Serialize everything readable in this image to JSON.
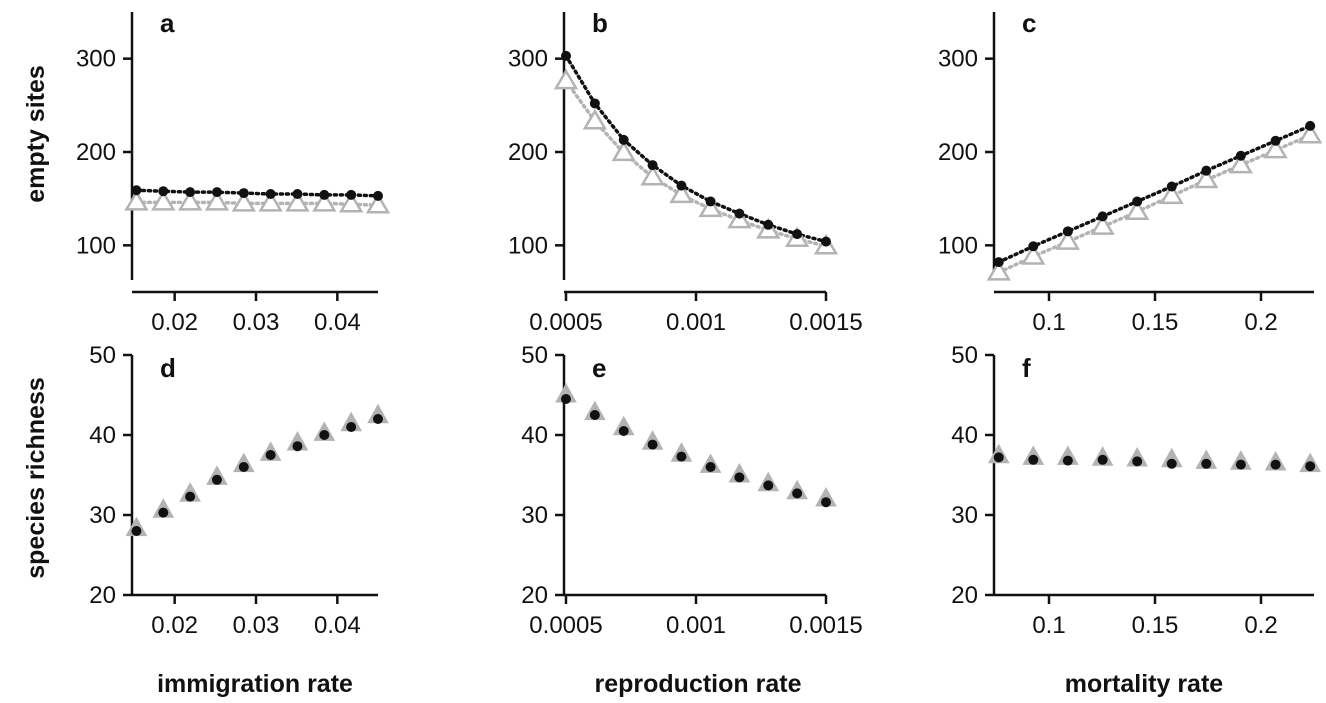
{
  "figure": {
    "row_titles": [
      "empty sites",
      "species richness"
    ],
    "column_titles": [
      "immigration rate",
      "reproduction rate",
      "mortality rate"
    ]
  },
  "colors": {
    "black_series": "#111111",
    "gray_series": "#b3b3b3",
    "axis": "#111111"
  },
  "chart_data": [
    {
      "type": "scatter",
      "panel": "a",
      "xlabel": "",
      "ylabel": "empty sites",
      "xlim": [
        0.015,
        0.045
      ],
      "ylim": [
        50,
        350
      ],
      "xticks": [
        0.02,
        0.03,
        0.04
      ],
      "xtick_labels": [
        "0.02",
        "0.03",
        "0.04"
      ],
      "yticks": [
        100,
        200,
        300
      ],
      "ytick_labels": [
        "100",
        "200",
        "300"
      ],
      "lines": true,
      "x": [
        0.0153,
        0.0186,
        0.0219,
        0.0252,
        0.0285,
        0.0318,
        0.0351,
        0.0384,
        0.0417,
        0.045
      ],
      "series": [
        {
          "marker": "circle",
          "color": "#111111",
          "values": [
            159,
            158,
            157,
            157,
            156,
            155,
            155,
            154,
            154,
            153
          ]
        },
        {
          "marker": "triangle",
          "color": "#b3b3b3",
          "values": [
            146,
            146,
            146,
            146,
            145,
            145,
            145,
            145,
            144,
            143
          ]
        }
      ]
    },
    {
      "type": "scatter",
      "panel": "b",
      "xlabel": "",
      "ylabel": "",
      "xlim": [
        0.0005,
        0.0015
      ],
      "ylim": [
        50,
        350
      ],
      "xticks": [
        0.0005,
        0.001,
        0.0015
      ],
      "xtick_labels": [
        "0.0005",
        "0.001",
        "0.0015"
      ],
      "yticks": [
        100,
        200,
        300
      ],
      "ytick_labels": [
        "100",
        "200",
        "300"
      ],
      "lines": true,
      "x": [
        0.0005,
        0.000611,
        0.000722,
        0.000833,
        0.000944,
        0.001056,
        0.001167,
        0.001278,
        0.001389,
        0.0015
      ],
      "series": [
        {
          "marker": "circle",
          "color": "#111111",
          "values": [
            303,
            252,
            213,
            186,
            164,
            147,
            134,
            122,
            112,
            104
          ]
        },
        {
          "marker": "triangle",
          "color": "#b3b3b3",
          "values": [
            276,
            233,
            199,
            173,
            154,
            139,
            127,
            116,
            107,
            99
          ]
        }
      ]
    },
    {
      "type": "scatter",
      "panel": "c",
      "xlabel": "",
      "ylabel": "",
      "xlim": [
        0.075,
        0.225
      ],
      "ylim": [
        50,
        350
      ],
      "xticks": [
        0.1,
        0.15,
        0.2
      ],
      "xtick_labels": [
        "0.1",
        "0.15",
        "0.2"
      ],
      "yticks": [
        100,
        200,
        300
      ],
      "ytick_labels": [
        "100",
        "200",
        "300"
      ],
      "lines": true,
      "x": [
        0.0763,
        0.0926,
        0.1089,
        0.1253,
        0.1416,
        0.1579,
        0.1742,
        0.1905,
        0.2069,
        0.2232
      ],
      "series": [
        {
          "marker": "circle",
          "color": "#111111",
          "values": [
            82,
            99,
            115,
            131,
            147,
            163,
            180,
            196,
            212,
            228
          ]
        },
        {
          "marker": "triangle",
          "color": "#b3b3b3",
          "values": [
            71,
            88,
            104,
            120,
            136,
            153,
            170,
            186,
            202,
            218
          ]
        }
      ]
    },
    {
      "type": "scatter",
      "panel": "d",
      "xlabel": "immigration rate",
      "ylabel": "species richness",
      "xlim": [
        0.015,
        0.045
      ],
      "ylim": [
        20,
        50
      ],
      "xticks": [
        0.02,
        0.03,
        0.04
      ],
      "xtick_labels": [
        "0.02",
        "0.03",
        "0.04"
      ],
      "yticks": [
        20,
        30,
        40,
        50
      ],
      "ytick_labels": [
        "20",
        "30",
        "40",
        "50"
      ],
      "lines": false,
      "x": [
        0.0153,
        0.0186,
        0.0219,
        0.0252,
        0.0285,
        0.0318,
        0.0351,
        0.0384,
        0.0417,
        0.045
      ],
      "series": [
        {
          "marker": "triangle",
          "color": "#b3b3b3",
          "values": [
            28.3,
            30.6,
            32.6,
            34.7,
            36.3,
            37.7,
            39.0,
            40.2,
            41.4,
            42.4
          ]
        },
        {
          "marker": "circle",
          "color": "#111111",
          "values": [
            28.0,
            30.3,
            32.3,
            34.4,
            36.0,
            37.5,
            38.6,
            40.0,
            41.0,
            42.0
          ]
        }
      ]
    },
    {
      "type": "scatter",
      "panel": "e",
      "xlabel": "reproduction rate",
      "ylabel": "",
      "xlim": [
        0.0005,
        0.0015
      ],
      "ylim": [
        20,
        50
      ],
      "xticks": [
        0.0005,
        0.001,
        0.0015
      ],
      "xtick_labels": [
        "0.0005",
        "0.001",
        "0.0015"
      ],
      "yticks": [
        20,
        30,
        40,
        50
      ],
      "ytick_labels": [
        "20",
        "30",
        "40",
        "50"
      ],
      "lines": false,
      "x": [
        0.0005,
        0.000611,
        0.000722,
        0.000833,
        0.000944,
        0.001056,
        0.001167,
        0.001278,
        0.001389,
        0.0015
      ],
      "series": [
        {
          "marker": "triangle",
          "color": "#b3b3b3",
          "values": [
            45.0,
            42.8,
            40.9,
            39.1,
            37.6,
            36.2,
            35.0,
            33.9,
            32.9,
            32.0
          ]
        },
        {
          "marker": "circle",
          "color": "#111111",
          "values": [
            44.5,
            42.5,
            40.5,
            38.8,
            37.3,
            36.0,
            34.7,
            33.7,
            32.7,
            31.6
          ]
        }
      ]
    },
    {
      "type": "scatter",
      "panel": "f",
      "xlabel": "mortality rate",
      "ylabel": "",
      "xlim": [
        0.075,
        0.225
      ],
      "ylim": [
        20,
        50
      ],
      "xticks": [
        0.1,
        0.15,
        0.2
      ],
      "xtick_labels": [
        "0.1",
        "0.15",
        "0.2"
      ],
      "yticks": [
        20,
        30,
        40,
        50
      ],
      "ytick_labels": [
        "20",
        "30",
        "40",
        "50"
      ],
      "lines": false,
      "x": [
        0.0763,
        0.0926,
        0.1089,
        0.1253,
        0.1416,
        0.1579,
        0.1742,
        0.1905,
        0.2069,
        0.2232
      ],
      "series": [
        {
          "marker": "triangle",
          "color": "#b3b3b3",
          "values": [
            37.4,
            37.2,
            37.2,
            37.1,
            37.0,
            36.9,
            36.7,
            36.6,
            36.5,
            36.3
          ]
        },
        {
          "marker": "circle",
          "color": "#111111",
          "values": [
            37.2,
            36.9,
            36.8,
            36.9,
            36.7,
            36.4,
            36.4,
            36.3,
            36.3,
            36.1
          ]
        }
      ]
    }
  ]
}
